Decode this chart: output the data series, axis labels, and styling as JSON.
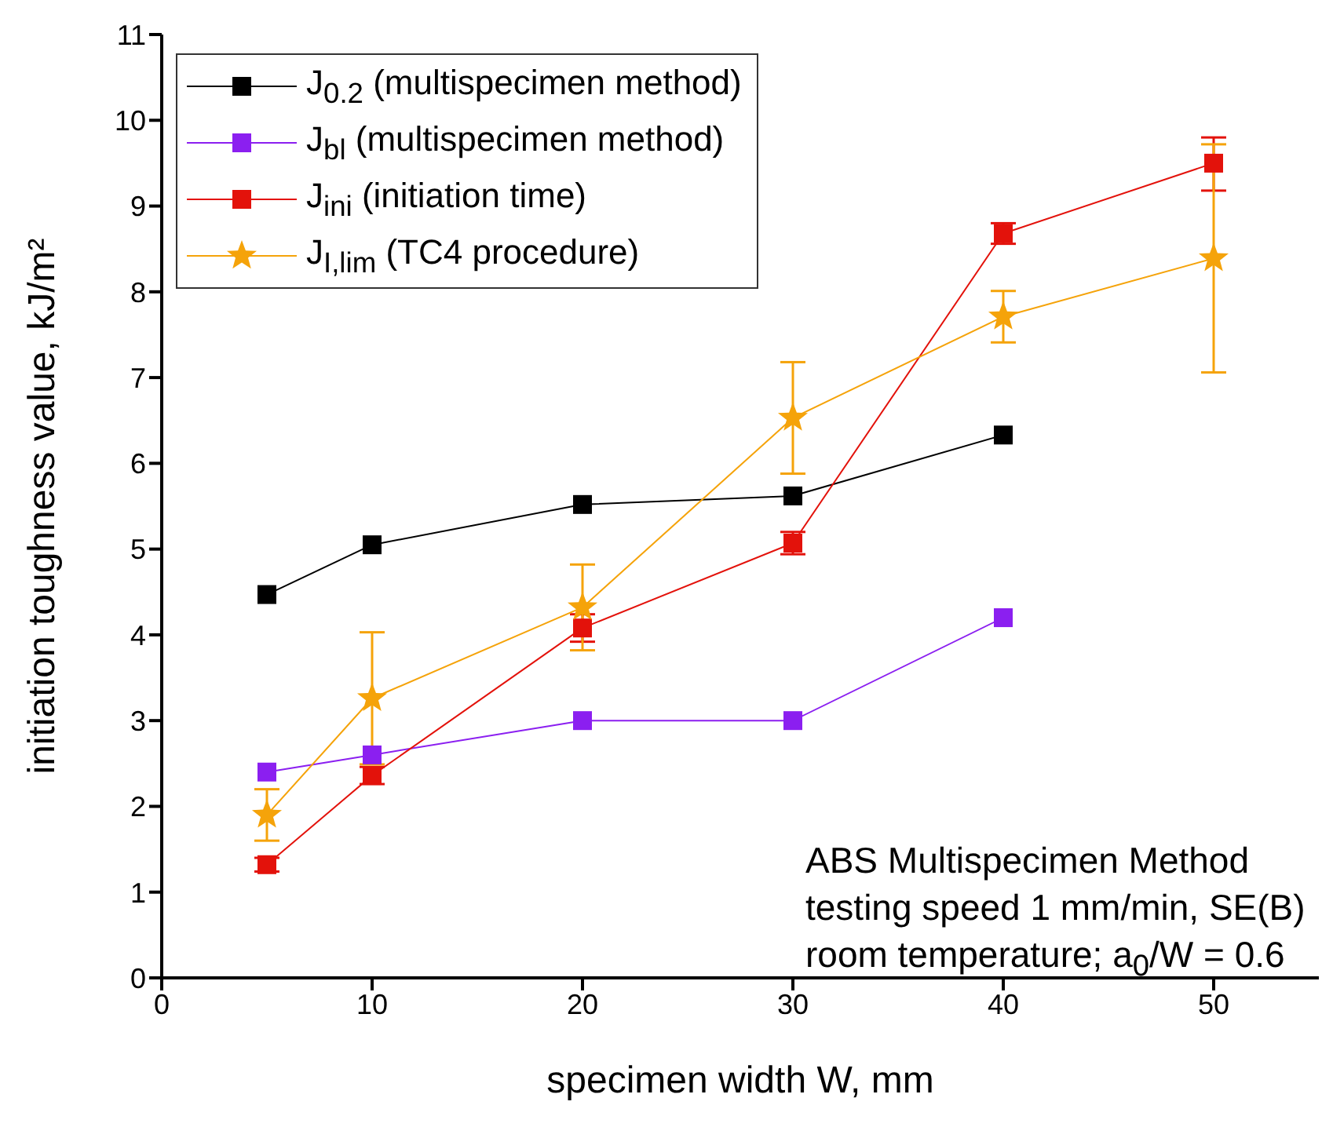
{
  "chart_data": {
    "type": "line",
    "xlabel": "specimen width W, mm",
    "ylabel": "initiation toughness value, kJ/m²",
    "xlim": [
      0,
      55
    ],
    "xticks": [
      0,
      10,
      20,
      30,
      40,
      50
    ],
    "ylim": [
      0,
      11
    ],
    "yticks": [
      0,
      1,
      2,
      3,
      4,
      5,
      6,
      7,
      8,
      9,
      10,
      11
    ],
    "legend": "top left",
    "series": [
      {
        "name": "J$_{0.2}$ (multispecimen method)",
        "color": "#000000",
        "marker": "square",
        "x": [
          5,
          10,
          20,
          30,
          40
        ],
        "values": [
          4.47,
          5.05,
          5.52,
          5.62,
          6.33
        ]
      },
      {
        "name": "J$_{bl}$ (multispecimen method)",
        "color": "#8b1ff0",
        "marker": "square",
        "x": [
          5,
          10,
          20,
          30,
          40
        ],
        "values": [
          2.4,
          2.6,
          3.0,
          3.0,
          4.2
        ]
      },
      {
        "name": "J$_{ini}$ (initiation time)",
        "color": "#e3120b",
        "marker": "square",
        "x": [
          5,
          10,
          20,
          30,
          40,
          50
        ],
        "values": [
          1.32,
          2.36,
          4.08,
          5.07,
          8.68,
          9.5
        ],
        "errors": [
          0.08,
          0.1,
          0.16,
          0.13,
          0.12,
          [
            9.18,
            9.8
          ]
        ]
      },
      {
        "name": "J$_{I,lim}$ (TC4 procedure)",
        "color": "#f5a30a",
        "marker": "star",
        "x": [
          5,
          10,
          20,
          30,
          40,
          50
        ],
        "values": [
          1.9,
          3.26,
          4.32,
          6.53,
          7.71,
          8.39
        ],
        "errors": [
          0.3,
          0.77,
          0.5,
          0.65,
          0.3,
          1.33
        ]
      }
    ],
    "annotations": [
      "ABS Multispecimen Method",
      "testing speed 1 mm/min, SE(B)",
      "room temperature; a$_{0}$/W = 0.6"
    ]
  }
}
